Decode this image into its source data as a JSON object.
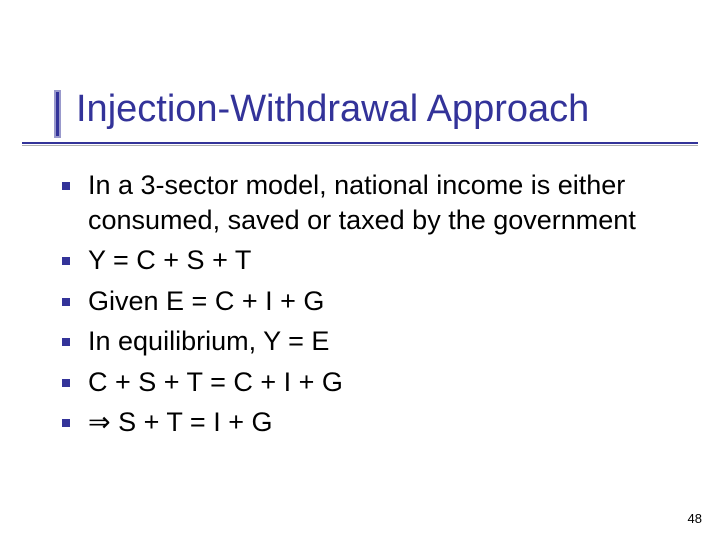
{
  "colors": {
    "accent": "#333399",
    "accent_light": "#9999cc",
    "rule_shadow": "#b0b0b0",
    "text": "#000000",
    "background": "#ffffff"
  },
  "title": "Injection-Withdrawal Approach",
  "title_fontsize": 38,
  "body_fontsize": 27,
  "bullets": [
    "In a 3-sector model, national income is either consumed, saved or taxed by the government",
    "Y = C + S + T",
    "Given E = C + I + G",
    "In equilibrium, Y = E",
    "C + S + T = C + I + G",
    "⇒ S + T = I + G"
  ],
  "page_number": "48"
}
